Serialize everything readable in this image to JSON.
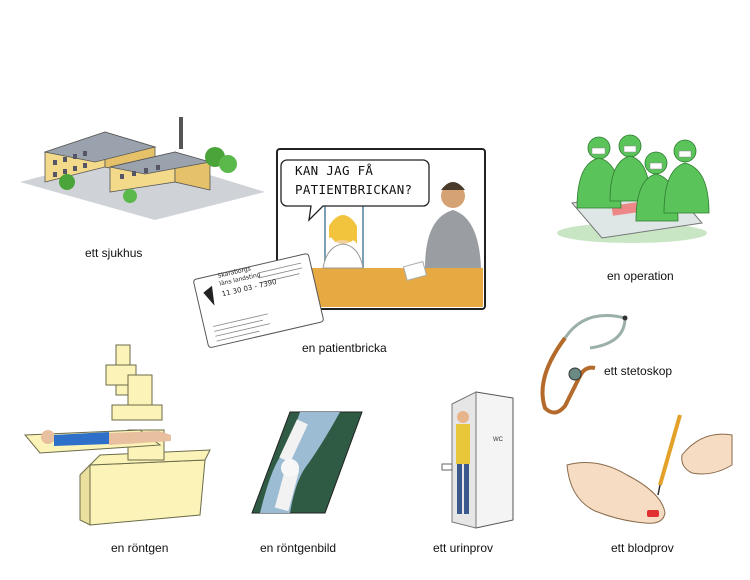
{
  "items": [
    {
      "id": "hospital",
      "label": "ett sjukhus"
    },
    {
      "id": "patient-card",
      "label": "en patientbricka",
      "speech": [
        "KAN JAG FÅ",
        "PATIENTBRICKAN?"
      ],
      "card_text": [
        "Skaraborgs",
        "läns landsting",
        "11 30 03 - 7390"
      ]
    },
    {
      "id": "operation",
      "label": "en operation"
    },
    {
      "id": "stethoscope",
      "label": "ett stetoskop"
    },
    {
      "id": "xray-machine",
      "label": "en röntgen"
    },
    {
      "id": "xray-image",
      "label": "en röntgenbild"
    },
    {
      "id": "urine-test",
      "label": "ett urinprov",
      "door_sign": "WC"
    },
    {
      "id": "blood-test",
      "label": "ett blodprov"
    }
  ]
}
